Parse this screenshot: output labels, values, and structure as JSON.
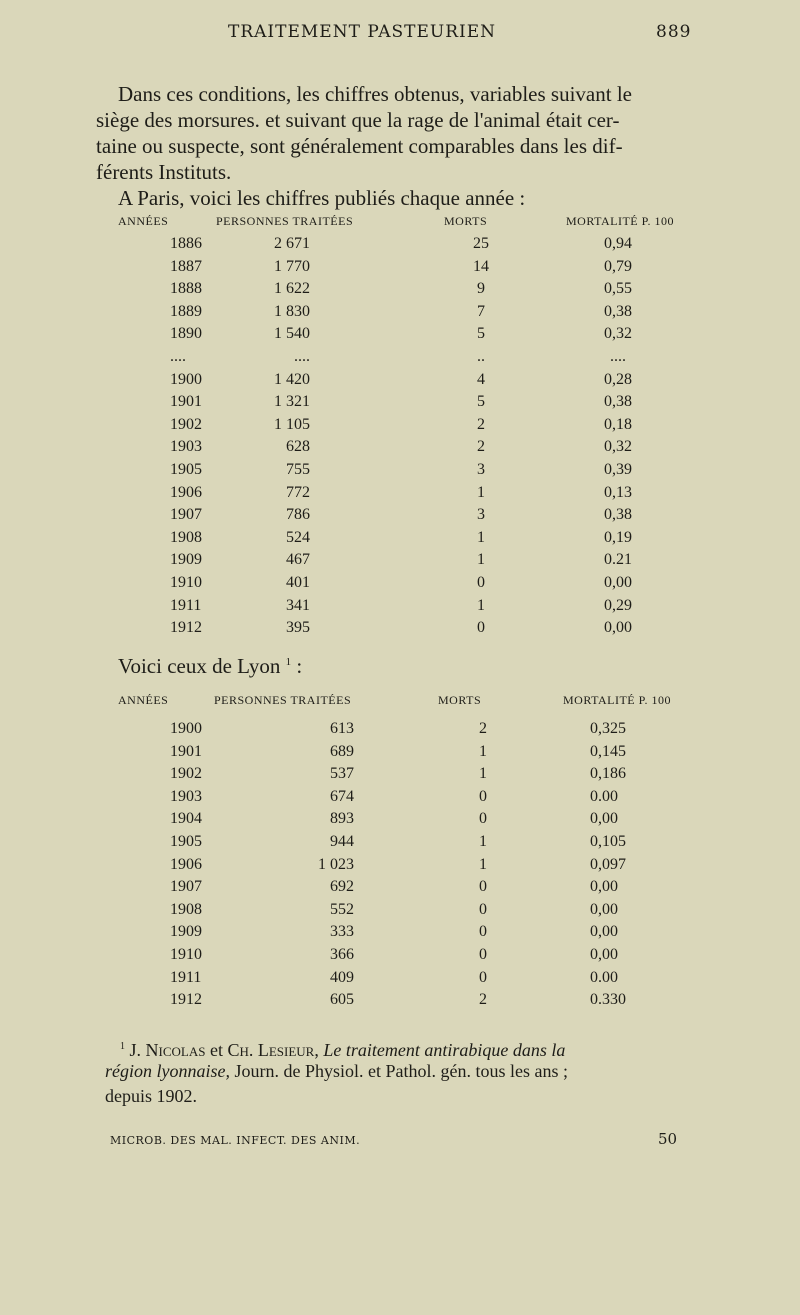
{
  "header": {
    "title": "TRAITEMENT PASTEURIEN",
    "page_number": "889"
  },
  "paragraph": [
    "Dans ces conditions, les chiffres obtenus, variables suivant le",
    "siège des morsures. et suivant que la rage de l'animal était cer-",
    "taine ou suspecte, sont généralement comparables dans les dif-",
    "férents Instituts."
  ],
  "paris_intro": "A Paris, voici les chiffres publiés chaque année :",
  "columns": {
    "years": "ANNÉES",
    "persons": "PERSONNES TRAITÉES",
    "deaths": "MORTS",
    "mortality": "MORTALITÉ P. 100"
  },
  "paris_rows": [
    [
      "1886",
      "2 671",
      "25",
      "0,94"
    ],
    [
      "1887",
      "1 770",
      "14",
      "0,79"
    ],
    [
      "1888",
      "1 622",
      "9",
      "0,55"
    ],
    [
      "1889",
      "1 830",
      "7",
      "0,38"
    ],
    [
      "1890",
      "1 540",
      "5",
      "0,32"
    ],
    [
      "....",
      "....",
      "..",
      "...."
    ],
    [
      "1900",
      "1 420",
      "4",
      "0,28"
    ],
    [
      "1901",
      "1 321",
      "5",
      "0,38"
    ],
    [
      "1902",
      "1 105",
      "2",
      "0,18"
    ],
    [
      "1903",
      "628",
      "2",
      "0,32"
    ],
    [
      "1905",
      "755",
      "3",
      "0,39"
    ],
    [
      "1906",
      "772",
      "1",
      "0,13"
    ],
    [
      "1907",
      "786",
      "3",
      "0,38"
    ],
    [
      "1908",
      "524",
      "1",
      "0,19"
    ],
    [
      "1909",
      "467",
      "1",
      "0.21"
    ],
    [
      "1910",
      "401",
      "0",
      "0,00"
    ],
    [
      "1911",
      "341",
      "1",
      "0,29"
    ],
    [
      "1912",
      "395",
      "0",
      "0,00"
    ]
  ],
  "lyon_intro": "Voici ceux de Lyon",
  "lyon_note_ref": "1",
  "lyon_colon": ":",
  "lyon_rows": [
    [
      "1900",
      "613",
      "2",
      "0,325"
    ],
    [
      "1901",
      "689",
      "1",
      "0,145"
    ],
    [
      "1902",
      "537",
      "1",
      "0,186"
    ],
    [
      "1903",
      "674",
      "0",
      "0.00"
    ],
    [
      "1904",
      "893",
      "0",
      "0,00"
    ],
    [
      "1905",
      "944",
      "1",
      "0,105"
    ],
    [
      "1906",
      "1 023",
      "1",
      "0,097"
    ],
    [
      "1907",
      "692",
      "0",
      "0,00"
    ],
    [
      "1908",
      "552",
      "0",
      "0,00"
    ],
    [
      "1909",
      "333",
      "0",
      "0,00"
    ],
    [
      "1910",
      "366",
      "0",
      "0,00"
    ],
    [
      "1911",
      "409",
      "0",
      "0.00"
    ],
    [
      "1912",
      "605",
      "2",
      "0.330"
    ]
  ],
  "footnote": {
    "mark": "1",
    "authors_a": "J. Nicolas",
    "and": "et",
    "authors_b": "Ch. Lesieur,",
    "title_a": "Le traitement antirabique dans la",
    "title_b": "région lyonnaise,",
    "journal": "Journ. de Physiol. et Pathol. gén. tous les ans ;",
    "last": "depuis 1902."
  },
  "bottom": {
    "signature": "MICROB. DES MAL. INFECT. DES ANIM.",
    "sheet": "50"
  }
}
